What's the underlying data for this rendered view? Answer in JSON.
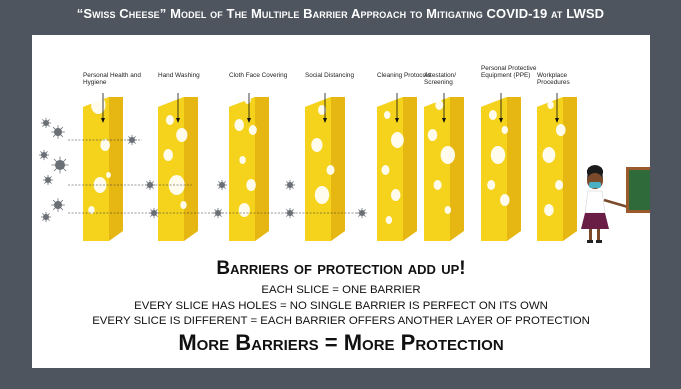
{
  "title": "“Swiss Cheese” Model of The Multiple Barrier Approach to Mitigating COVID-19 at LWSD",
  "barriers": [
    {
      "label": "Personal Health and Hygiene"
    },
    {
      "label": "Hand Washing"
    },
    {
      "label": "Cloth Face Covering"
    },
    {
      "label": "Social Distancing"
    },
    {
      "label": "Cleaning Protocols"
    },
    {
      "label": "Attestation/ Screening"
    },
    {
      "label": "Personal Protective Equipment (PPE)"
    },
    {
      "label": "Workplace Procedures"
    }
  ],
  "headline": "Barriers of protection add up!",
  "lines": [
    "EACH SLICE = ONE BARRIER",
    "EVERY SLICE HAS HOLES = NO SINGLE BARRIER IS PERFECT ON ITS OWN",
    "EVERY SLICE IS DIFFERENT = EACH BARRIER OFFERS ANOTHER LAYER OF PROTECTION"
  ],
  "closing": "More Barriers = More Protection",
  "colors": {
    "background": "#4e555e",
    "panel": "#ffffff",
    "cheese": "#f5d31c",
    "cheese_edge": "#e6b712",
    "virus": "#6a6f75",
    "chalkboard": "#2f6b3a",
    "frame_wood": "#9b5a2c"
  },
  "icons": [
    "virus-icon",
    "teacher-illustration",
    "chalkboard-icon",
    "pointer-arrow-icon"
  ]
}
